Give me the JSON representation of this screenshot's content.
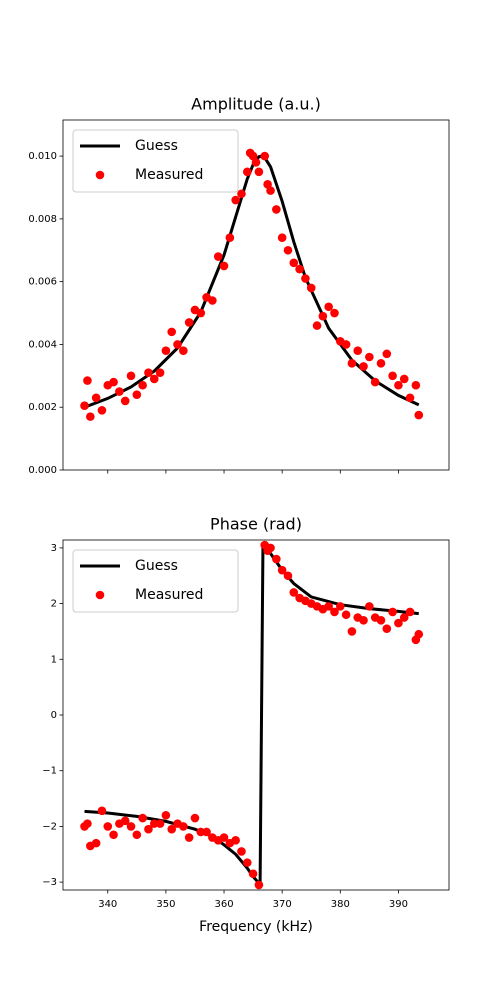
{
  "chart_data": [
    {
      "type": "line",
      "title": "Amplitude (a.u.)",
      "legend": "upper left",
      "show_xtick_labels": false,
      "xlim": [
        332.3,
        398.7
      ],
      "xticks": [
        340,
        350,
        360,
        370,
        380,
        390
      ],
      "ylim": [
        0,
        0.01115
      ],
      "yticks": [
        {
          "value": 0,
          "label": "0.000"
        },
        {
          "value": 0.002,
          "label": "0.002"
        },
        {
          "value": 0.004,
          "label": "0.004"
        },
        {
          "value": 0.006,
          "label": "0.006"
        },
        {
          "value": 0.008,
          "label": "0.008"
        },
        {
          "value": 0.01,
          "label": "0.010"
        }
      ],
      "series": [
        {
          "name": "Guess",
          "type": "line",
          "color": "#000000",
          "x": [
            336,
            340,
            344,
            348,
            352,
            356,
            360,
            362,
            364,
            365,
            366,
            366.5,
            367,
            368,
            370,
            372,
            374,
            378,
            382,
            386,
            390,
            393.5
          ],
          "values": [
            0.002,
            0.00228,
            0.002645,
            0.003152,
            0.003887,
            0.00503,
            0.00685,
            0.00806,
            0.009275,
            0.00973,
            0.00998,
            0.01,
            0.00995,
            0.00966,
            0.00856,
            0.00727,
            0.00613,
            0.004516,
            0.0035,
            0.00284,
            0.002377,
            0.002074
          ]
        },
        {
          "name": "Measured",
          "type": "scatter",
          "color": "#ff0000",
          "x": [
            336,
            336.5,
            337,
            338,
            339,
            340,
            341,
            342,
            343,
            344,
            345,
            346,
            347,
            348,
            349,
            350,
            351,
            352,
            353,
            354,
            355,
            356,
            357,
            358,
            359,
            360,
            361,
            362,
            363,
            364,
            364.5,
            365,
            365.5,
            366,
            367,
            367.5,
            368,
            369,
            370,
            371,
            372,
            373,
            374,
            375,
            376,
            377,
            378,
            379,
            380,
            381,
            382,
            383,
            384,
            385,
            386,
            387,
            388,
            389,
            390,
            391,
            392,
            393,
            393.5
          ],
          "values": [
            0.00205,
            0.00285,
            0.0017,
            0.0023,
            0.0019,
            0.0027,
            0.0028,
            0.0025,
            0.0022,
            0.003,
            0.0024,
            0.0027,
            0.0031,
            0.0029,
            0.0031,
            0.0038,
            0.0044,
            0.004,
            0.0038,
            0.0047,
            0.0051,
            0.005,
            0.0055,
            0.0054,
            0.0068,
            0.0065,
            0.0074,
            0.0086,
            0.0088,
            0.0095,
            0.0101,
            0.01,
            0.0098,
            0.0095,
            0.01,
            0.0091,
            0.0089,
            0.0083,
            0.0074,
            0.007,
            0.0066,
            0.0064,
            0.0061,
            0.0058,
            0.0046,
            0.0049,
            0.0052,
            0.005,
            0.0041,
            0.004,
            0.0034,
            0.0038,
            0.0033,
            0.0036,
            0.0028,
            0.0034,
            0.0037,
            0.003,
            0.0027,
            0.0029,
            0.0023,
            0.0027,
            0.00175
          ]
        }
      ]
    },
    {
      "type": "line",
      "title": "Phase (rad)",
      "xlabel": "Frequency (kHz)",
      "legend": "upper left",
      "show_xtick_labels": true,
      "xlim": [
        332.3,
        398.7
      ],
      "xticks": [
        340,
        350,
        360,
        370,
        380,
        390
      ],
      "ylim": [
        -3.14159,
        3.14159
      ],
      "yticks": [
        {
          "value": -3,
          "label": "−3"
        },
        {
          "value": -2,
          "label": "−2"
        },
        {
          "value": -1,
          "label": "−1"
        },
        0,
        1,
        2,
        3
      ],
      "series": [
        {
          "name": "Guess",
          "type": "line",
          "color": "#000000",
          "x": [
            336,
            340,
            345,
            350,
            355,
            358,
            360,
            362,
            364,
            365,
            366,
            366.2,
            366.7,
            367,
            368,
            370,
            372,
            375,
            380,
            385,
            390,
            393.5
          ],
          "values": [
            -1.73,
            -1.76,
            -1.82,
            -1.91,
            -2.05,
            -2.18,
            -2.33,
            -2.5,
            -2.75,
            -2.9,
            -3.02,
            -3.08,
            3.08,
            3.02,
            2.9,
            2.6,
            2.36,
            2.12,
            1.98,
            1.91,
            1.86,
            1.82
          ]
        },
        {
          "name": "Measured",
          "type": "scatter",
          "color": "#ff0000",
          "x": [
            336,
            336.5,
            337,
            338,
            339,
            340,
            341,
            342,
            343,
            344,
            345,
            346,
            347,
            348,
            349,
            350,
            351,
            352,
            353,
            354,
            355,
            356,
            357,
            358,
            359,
            360,
            361,
            362,
            363,
            364,
            365,
            366,
            367,
            367.5,
            368,
            369,
            370,
            371,
            372,
            373,
            374,
            375,
            376,
            377,
            378,
            379,
            380,
            381,
            382,
            383,
            384,
            385,
            386,
            387,
            388,
            389,
            390,
            391,
            392,
            393,
            393.5
          ],
          "values": [
            -2.0,
            -1.95,
            -2.35,
            -2.3,
            -1.72,
            -2.0,
            -2.15,
            -1.95,
            -1.9,
            -2.0,
            -2.15,
            -1.85,
            -2.05,
            -1.95,
            -1.95,
            -1.8,
            -2.05,
            -1.95,
            -2.0,
            -2.2,
            -1.85,
            -2.1,
            -2.1,
            -2.2,
            -2.25,
            -2.2,
            -2.3,
            -2.25,
            -2.45,
            -2.65,
            -2.85,
            -3.05,
            3.05,
            2.95,
            3.0,
            2.8,
            2.6,
            2.5,
            2.2,
            2.1,
            2.05,
            2.0,
            1.95,
            1.9,
            1.95,
            1.85,
            1.95,
            1.8,
            1.5,
            1.75,
            1.7,
            1.95,
            1.75,
            1.7,
            1.55,
            1.85,
            1.65,
            1.75,
            1.85,
            1.35,
            1.45
          ]
        }
      ]
    }
  ]
}
